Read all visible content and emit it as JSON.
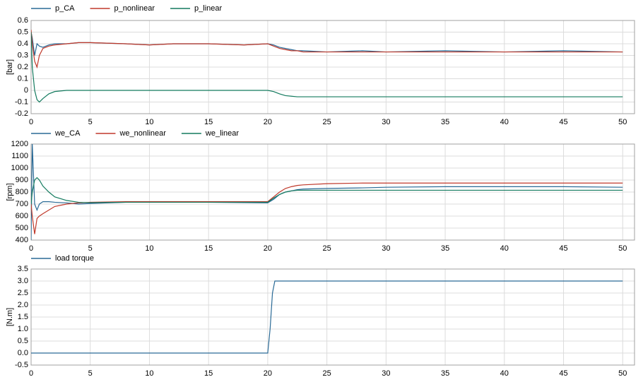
{
  "chart_data": [
    {
      "type": "line",
      "ylabel": "[bar]",
      "x": [
        0,
        0.1,
        0.3,
        0.5,
        0.7,
        1,
        1.5,
        2,
        3,
        4,
        5,
        8,
        10,
        12,
        15,
        18,
        20,
        20.5,
        21,
        21.5,
        22,
        22.5,
        23,
        25,
        28,
        30,
        35,
        40,
        45,
        50
      ],
      "series": [
        {
          "name": "p_CA",
          "color": "#2a6a96",
          "values": [
            0.5,
            0.45,
            0.3,
            0.4,
            0.38,
            0.37,
            0.39,
            0.4,
            0.4,
            0.41,
            0.41,
            0.4,
            0.39,
            0.4,
            0.4,
            0.39,
            0.4,
            0.39,
            0.37,
            0.36,
            0.35,
            0.34,
            0.34,
            0.33,
            0.34,
            0.33,
            0.34,
            0.33,
            0.34,
            0.33
          ]
        },
        {
          "name": "p_nonlinear",
          "color": "#c0392b",
          "values": [
            0.52,
            0.4,
            0.25,
            0.2,
            0.3,
            0.36,
            0.38,
            0.39,
            0.4,
            0.41,
            0.41,
            0.4,
            0.39,
            0.4,
            0.4,
            0.39,
            0.4,
            0.38,
            0.36,
            0.35,
            0.34,
            0.34,
            0.33,
            0.33,
            0.33,
            0.33,
            0.33,
            0.33,
            0.33,
            0.33
          ]
        },
        {
          "name": "p_linear",
          "color": "#137a5e",
          "values": [
            0.5,
            0.2,
            0.0,
            -0.08,
            -0.1,
            -0.07,
            -0.03,
            -0.01,
            0,
            0,
            0,
            0,
            0,
            0,
            0,
            0,
            0,
            -0.01,
            -0.03,
            -0.045,
            -0.05,
            -0.055,
            -0.055,
            -0.055,
            -0.055,
            -0.055,
            -0.055,
            -0.055,
            -0.055,
            -0.055
          ]
        }
      ],
      "xlim": [
        0,
        51
      ],
      "xticks": [
        0,
        5,
        10,
        15,
        20,
        25,
        30,
        35,
        40,
        45,
        50
      ],
      "ylim": [
        -0.2,
        0.6
      ],
      "yticks": [
        0.6,
        0.5,
        0.4,
        0.3,
        0.2,
        0.1,
        0,
        -0.1,
        -0.2
      ],
      "grid": true
    },
    {
      "type": "line",
      "ylabel": "[rpm]",
      "x": [
        0,
        0.1,
        0.3,
        0.5,
        0.7,
        1,
        1.5,
        2,
        3,
        4,
        5,
        8,
        10,
        12,
        15,
        18,
        20,
        20.5,
        21,
        21.5,
        22,
        22.5,
        23,
        25,
        28,
        30,
        35,
        40,
        45,
        50
      ],
      "series": [
        {
          "name": "we_CA",
          "color": "#2a6a96",
          "values": [
            400,
            1200,
            700,
            650,
            700,
            720,
            720,
            715,
            710,
            700,
            705,
            715,
            720,
            715,
            715,
            712,
            710,
            740,
            780,
            800,
            810,
            820,
            825,
            830,
            835,
            840,
            845,
            845,
            845,
            840
          ]
        },
        {
          "name": "we_nonlinear",
          "color": "#c0392b",
          "values": [
            700,
            600,
            450,
            580,
            600,
            620,
            650,
            680,
            700,
            710,
            715,
            720,
            720,
            720,
            720,
            720,
            720,
            760,
            800,
            830,
            845,
            855,
            860,
            870,
            875,
            875,
            875,
            875,
            875,
            875
          ]
        },
        {
          "name": "we_linear",
          "color": "#137a5e",
          "values": [
            700,
            800,
            900,
            920,
            900,
            850,
            800,
            760,
            730,
            715,
            712,
            715,
            715,
            715,
            715,
            715,
            715,
            750,
            780,
            800,
            810,
            815,
            815,
            815,
            815,
            815,
            815,
            815,
            815,
            815
          ]
        }
      ],
      "xlim": [
        0,
        51
      ],
      "xticks": [
        0,
        5,
        10,
        15,
        20,
        25,
        30,
        35,
        40,
        45,
        50
      ],
      "ylim": [
        400,
        1200
      ],
      "yticks": [
        1200,
        1100,
        1000,
        900,
        800,
        700,
        600,
        500,
        400
      ],
      "grid": true
    },
    {
      "type": "line",
      "ylabel": "[N.m]",
      "x": [
        0,
        20,
        20.2,
        20.4,
        20.6,
        50
      ],
      "series": [
        {
          "name": "load torque",
          "color": "#2a6a96",
          "values": [
            0,
            0,
            1,
            2.5,
            3,
            3
          ]
        }
      ],
      "xlim": [
        0,
        51
      ],
      "xticks": [
        0,
        5,
        10,
        15,
        20,
        25,
        30,
        35,
        40,
        45,
        50
      ],
      "ylim": [
        -0.5,
        3.5
      ],
      "yticks": [
        3.5,
        {
          "value": 3,
          "label": "3.0"
        },
        2.5,
        {
          "value": 2,
          "label": "2.0"
        },
        1.5,
        {
          "value": 1,
          "label": "1.0"
        },
        0.5,
        {
          "value": 0,
          "label": "0.0"
        },
        -0.5
      ],
      "grid": true
    }
  ]
}
